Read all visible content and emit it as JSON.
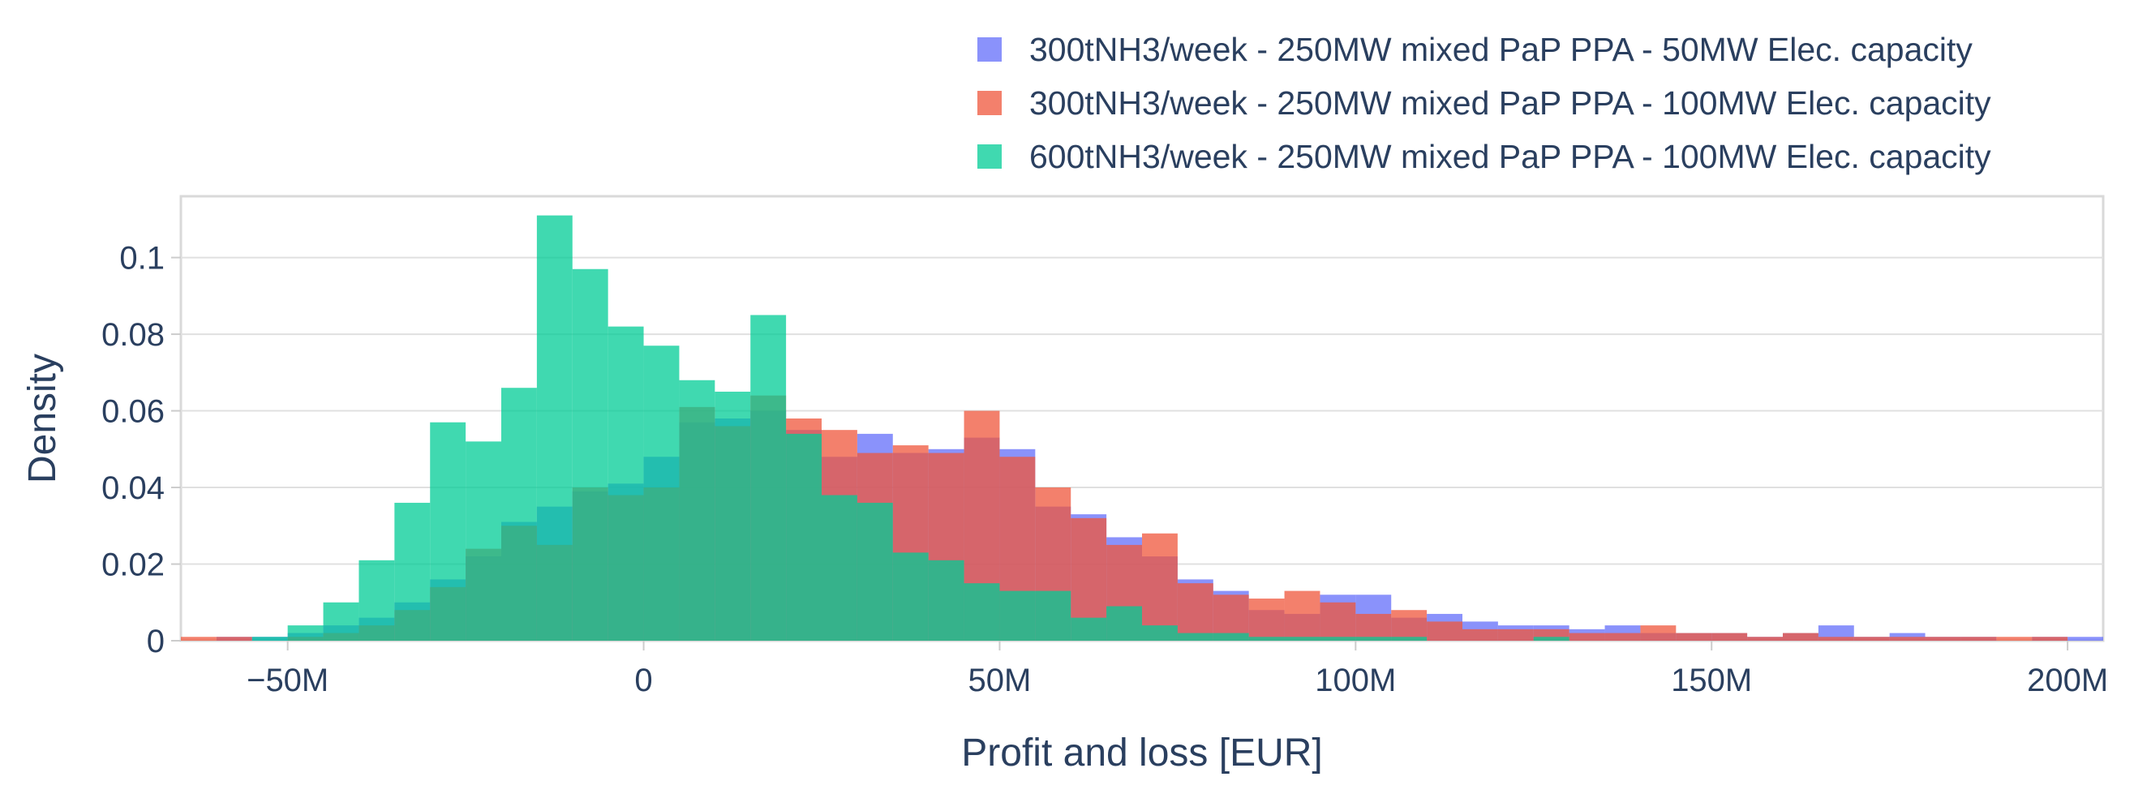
{
  "chart_data": {
    "type": "histogram",
    "xlabel": "Profit and loss [EUR]",
    "ylabel": "Density",
    "xlim": [
      -65,
      205
    ],
    "ylim": [
      0,
      0.116
    ],
    "x_unit": "M EUR",
    "bin_start": -65,
    "bin_width": 5,
    "x_ticks": [
      -50,
      0,
      50,
      100,
      150,
      200
    ],
    "x_tick_labels": [
      "−50M",
      "0",
      "50M",
      "100M",
      "150M",
      "200M"
    ],
    "y_ticks": [
      0,
      0.02,
      0.04,
      0.06,
      0.08,
      0.1
    ],
    "y_tick_labels": [
      "0",
      "0.02",
      "0.04",
      "0.06",
      "0.08",
      "0.1"
    ],
    "grid": true,
    "legend_position": "top-right",
    "series": [
      {
        "name": "300tNH3/week - 250MW mixed PaP PPA - 50MW Elec. capacity",
        "color": "#636efa",
        "values": [
          0,
          0.001,
          0.001,
          0.002,
          0.004,
          0.006,
          0.01,
          0.016,
          0.022,
          0.031,
          0.035,
          0.039,
          0.041,
          0.048,
          0.057,
          0.058,
          0.06,
          0.055,
          0.048,
          0.054,
          0.049,
          0.05,
          0.053,
          0.05,
          0.035,
          0.033,
          0.027,
          0.022,
          0.016,
          0.013,
          0.008,
          0.007,
          0.012,
          0.012,
          0.006,
          0.007,
          0.005,
          0.004,
          0.004,
          0.003,
          0.004,
          0.002,
          0.002,
          0.002,
          0.001,
          0.002,
          0.004,
          0.001,
          0.002,
          0.001,
          0.001,
          0,
          0.001,
          0.001,
          0.002
        ]
      },
      {
        "name": "300tNH3/week - 250MW mixed PaP PPA - 100MW Elec. capacity",
        "color": "#ef553b",
        "values": [
          0.001,
          0.001,
          0,
          0.001,
          0.002,
          0.004,
          0.008,
          0.014,
          0.024,
          0.03,
          0.025,
          0.04,
          0.038,
          0.04,
          0.061,
          0.056,
          0.064,
          0.058,
          0.055,
          0.049,
          0.051,
          0.049,
          0.06,
          0.048,
          0.04,
          0.032,
          0.025,
          0.028,
          0.015,
          0.012,
          0.011,
          0.013,
          0.01,
          0.007,
          0.008,
          0.005,
          0.003,
          0.003,
          0.003,
          0.002,
          0.002,
          0.004,
          0.002,
          0.002,
          0.001,
          0.002,
          0.001,
          0.001,
          0.001,
          0.001,
          0.001,
          0.001,
          0.001,
          0,
          0
        ]
      },
      {
        "name": "600tNH3/week - 250MW mixed PaP PPA - 100MW Elec. capacity",
        "color": "#00cc96",
        "values": [
          0,
          0,
          0.001,
          0.004,
          0.01,
          0.021,
          0.036,
          0.057,
          0.052,
          0.066,
          0.111,
          0.097,
          0.082,
          0.077,
          0.068,
          0.065,
          0.085,
          0.054,
          0.038,
          0.036,
          0.023,
          0.021,
          0.015,
          0.013,
          0.013,
          0.006,
          0.009,
          0.004,
          0.002,
          0.002,
          0.001,
          0.001,
          0.001,
          0.001,
          0.001,
          0,
          0,
          0,
          0.001,
          0,
          0,
          0,
          0,
          0,
          0,
          0,
          0,
          0,
          0,
          0,
          0,
          0,
          0,
          0,
          0
        ]
      }
    ]
  }
}
